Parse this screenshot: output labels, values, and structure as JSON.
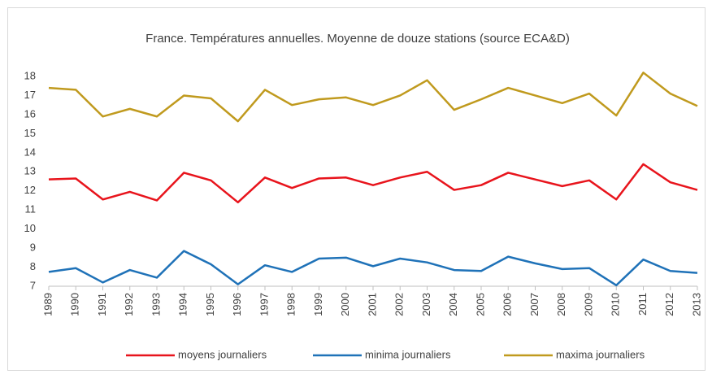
{
  "chart_data": {
    "type": "line",
    "title": "France. Températures annuelles. Moyenne de douze stations (source ECA&D)",
    "categories": [
      "1989",
      "1990",
      "1991",
      "1992",
      "1993",
      "1994",
      "1995",
      "1996",
      "1997",
      "1998",
      "1999",
      "2000",
      "2001",
      "2002",
      "2003",
      "2004",
      "2005",
      "2006",
      "2007",
      "2008",
      "2009",
      "2010",
      "2011",
      "2012",
      "2013"
    ],
    "series": [
      {
        "name": "moyens journaliers",
        "color": "#e8141c",
        "values": [
          12.6,
          12.65,
          11.55,
          11.95,
          11.5,
          12.95,
          12.55,
          11.4,
          12.7,
          12.15,
          12.65,
          12.7,
          12.3,
          12.7,
          13.0,
          12.05,
          12.3,
          12.95,
          12.6,
          12.25,
          12.55,
          11.55,
          13.4,
          12.45,
          12.05
        ]
      },
      {
        "name": "minima journaliers",
        "color": "#1f72b8",
        "values": [
          7.75,
          7.95,
          7.2,
          7.85,
          7.45,
          8.85,
          8.15,
          7.1,
          8.1,
          7.75,
          8.45,
          8.5,
          8.05,
          8.45,
          8.25,
          7.85,
          7.8,
          8.55,
          8.2,
          7.9,
          7.95,
          7.05,
          8.4,
          7.8,
          7.7
        ]
      },
      {
        "name": "maxima journaliers",
        "color": "#c09a1e",
        "values": [
          17.4,
          17.3,
          15.9,
          16.3,
          15.9,
          17.0,
          16.85,
          15.65,
          17.3,
          16.5,
          16.8,
          16.9,
          16.5,
          17.0,
          17.8,
          16.25,
          16.8,
          17.4,
          17.0,
          16.6,
          17.1,
          15.95,
          18.2,
          17.1,
          16.45
        ]
      }
    ],
    "ylim": [
      7,
      18
    ],
    "yticks": [
      7,
      8,
      9,
      10,
      11,
      12,
      13,
      14,
      15,
      16,
      17,
      18
    ],
    "grid": false,
    "legend": "bottom"
  }
}
